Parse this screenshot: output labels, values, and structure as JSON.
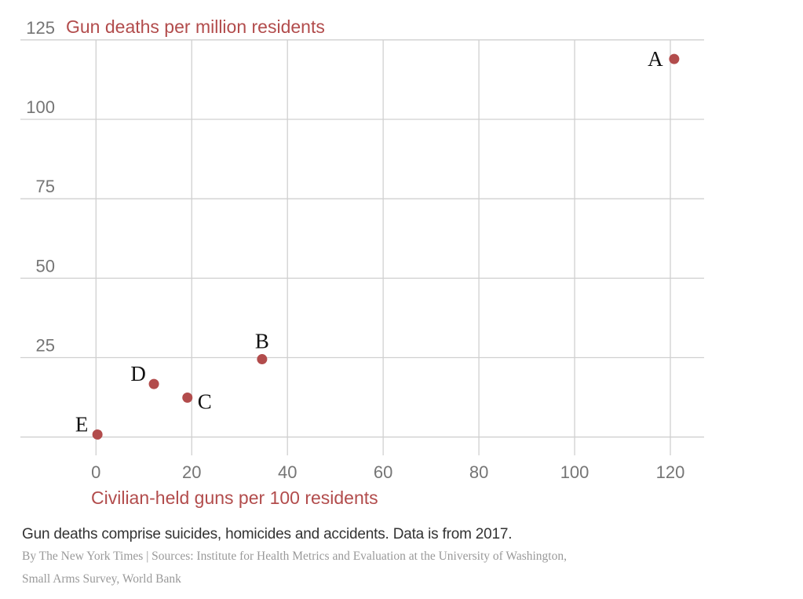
{
  "chart_data": {
    "type": "scatter",
    "title": "Gun deaths per million residents",
    "ylabel": "Gun deaths per million residents",
    "xlabel": "Civilian-held guns per 100 residents",
    "xlim": [
      0,
      120
    ],
    "ylim": [
      0,
      125
    ],
    "xticks": [
      0,
      20,
      40,
      60,
      80,
      100,
      120
    ],
    "yticks": [
      25,
      50,
      75,
      100,
      125
    ],
    "ytick_labels": [
      "25",
      "50",
      "75",
      "100",
      "125"
    ],
    "xtick_labels": [
      "0",
      "20",
      "40",
      "60",
      "80",
      "100",
      "120"
    ],
    "grid": true,
    "point_color": "#b24c4c",
    "points": [
      {
        "label": "A",
        "x": 120.8,
        "y": 119.0,
        "label_pos": "left"
      },
      {
        "label": "B",
        "x": 34.7,
        "y": 24.5,
        "label_pos": "top"
      },
      {
        "label": "C",
        "x": 19.1,
        "y": 12.4,
        "label_pos": "right"
      },
      {
        "label": "D",
        "x": 12.1,
        "y": 16.7,
        "label_pos": "left-top"
      },
      {
        "label": "E",
        "x": 0.3,
        "y": 0.8,
        "label_pos": "left-top"
      }
    ]
  },
  "footer": {
    "note": "Gun deaths comprise suicides, homicides and accidents. Data is from 2017.",
    "source_line1": "By The New York Times | Sources: Institute for Health Metrics and Evaluation at the University of Washington,",
    "source_line2": "Small Arms Survey, World Bank"
  }
}
